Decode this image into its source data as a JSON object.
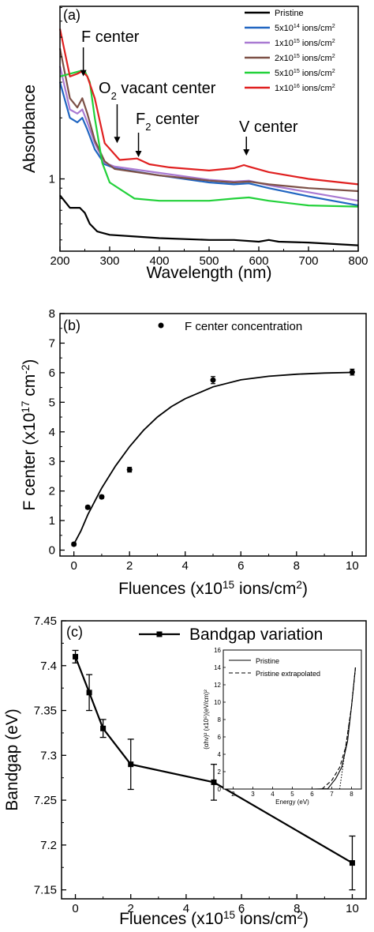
{
  "chart_data": [
    {
      "type": "line",
      "panel_label": "(a)",
      "xlabel": "Wavelength (nm)",
      "ylabel": "Absorbance",
      "xlim": [
        200,
        800
      ],
      "ylog": true,
      "ylim": [
        0.44,
        7.1
      ],
      "xticks": [
        "200",
        "300",
        "400",
        "500",
        "600",
        "700",
        "800"
      ],
      "yticks": [
        {
          "label": "1",
          "value": 1
        }
      ],
      "legend_position": "top-right",
      "annotations": [
        {
          "label": "F center",
          "x": 247,
          "y": 3.15
        },
        {
          "label": "O",
          "sub": "2",
          "label_rest": " vacant center",
          "x": 315,
          "y": 1.5
        },
        {
          "label": "F",
          "sub": "2",
          "label_rest": " center",
          "x": 358,
          "y": 1.28
        },
        {
          "label": "V center",
          "x": 575,
          "y": 1.28
        }
      ],
      "series": [
        {
          "name": "Pristine",
          "sup": "",
          "color": "#000000",
          "x": [
            200,
            220,
            240,
            250,
            260,
            275,
            300,
            350,
            400,
            500,
            550,
            600,
            620,
            640,
            700,
            800
          ],
          "y": [
            0.83,
            0.72,
            0.72,
            0.68,
            0.6,
            0.55,
            0.53,
            0.52,
            0.51,
            0.5,
            0.5,
            0.49,
            0.5,
            0.49,
            0.485,
            0.47
          ]
        },
        {
          "name": "5x10",
          "sup": "14",
          "unit": " ions/cm",
          "unitsup": "2",
          "color": "#2166c1",
          "x": [
            200,
            220,
            235,
            245,
            255,
            270,
            290,
            310,
            400,
            500,
            550,
            580,
            620,
            700,
            800
          ],
          "y": [
            3.0,
            2.0,
            1.9,
            2.0,
            1.75,
            1.4,
            1.18,
            1.13,
            1.04,
            0.96,
            0.94,
            0.95,
            0.9,
            0.82,
            0.74
          ]
        },
        {
          "name": "1x10",
          "sup": "15",
          "unit": " ions/cm",
          "unitsup": "2",
          "color": "#a97ad2",
          "x": [
            200,
            220,
            235,
            245,
            255,
            270,
            290,
            310,
            400,
            500,
            550,
            580,
            620,
            700,
            800
          ],
          "y": [
            3.6,
            2.2,
            2.1,
            2.2,
            1.9,
            1.5,
            1.2,
            1.15,
            1.07,
            0.99,
            0.97,
            0.98,
            0.93,
            0.86,
            0.78
          ]
        },
        {
          "name": "2x10",
          "sup": "15",
          "unit": " ions/cm",
          "unitsup": "2",
          "color": "#7d5147",
          "x": [
            200,
            220,
            235,
            245,
            255,
            270,
            290,
            310,
            400,
            500,
            550,
            580,
            620,
            700,
            800
          ],
          "y": [
            4.4,
            2.5,
            2.25,
            2.5,
            2.1,
            1.55,
            1.22,
            1.12,
            1.04,
            0.98,
            0.96,
            0.97,
            0.94,
            0.9,
            0.87
          ]
        },
        {
          "name": "5x10",
          "sup": "15",
          "unit": " ions/cm",
          "unitsup": "2",
          "color": "#22d13a",
          "x": [
            200,
            220,
            240,
            250,
            260,
            270,
            285,
            300,
            350,
            400,
            500,
            550,
            580,
            620,
            700,
            800
          ],
          "y": [
            3.2,
            3.3,
            3.4,
            3.4,
            3.0,
            2.0,
            1.2,
            0.96,
            0.8,
            0.78,
            0.78,
            0.8,
            0.81,
            0.78,
            0.74,
            0.73
          ]
        },
        {
          "name": "1x10",
          "sup": "16",
          "unit": " ions/cm",
          "unitsup": "2",
          "color": "#e02020",
          "x": [
            200,
            220,
            235,
            245,
            255,
            270,
            290,
            320,
            355,
            380,
            420,
            500,
            550,
            570,
            580,
            620,
            700,
            800
          ],
          "y": [
            5.5,
            3.2,
            3.3,
            3.4,
            3.2,
            2.5,
            1.5,
            1.24,
            1.26,
            1.18,
            1.14,
            1.1,
            1.13,
            1.17,
            1.15,
            1.08,
            1.0,
            0.94
          ]
        }
      ]
    },
    {
      "type": "scatter",
      "panel_label": "(b)",
      "xlabel": "Fluences (x10",
      "xlabel_sup": "15",
      "xlabel_rest": " ions/cm",
      "xlabel_sup2": "2",
      "xlabel_end": ")",
      "ylabel": "F center (x10",
      "ylabel_sup": "17",
      "ylabel_rest": " cm",
      "ylabel_sup2": "-2",
      "ylabel_end": ")",
      "xlim": [
        -0.5,
        10.5
      ],
      "ylim": [
        -0.2,
        8
      ],
      "xticks": [
        0,
        2,
        4,
        6,
        8,
        10
      ],
      "yticks": [
        0,
        1,
        2,
        3,
        4,
        5,
        6,
        7,
        8
      ],
      "legend_position": "top-right",
      "series": [
        {
          "name": "F center concentration",
          "color": "#000000",
          "x": [
            0,
            0.5,
            1,
            2,
            5,
            10
          ],
          "y": [
            0.2,
            1.45,
            1.8,
            2.72,
            5.75,
            6.02
          ],
          "err": [
            0.05,
            0.05,
            0.05,
            0.08,
            0.12,
            0.1
          ]
        }
      ],
      "fit": {
        "color": "#000000",
        "x": [
          0,
          0.25,
          0.5,
          0.75,
          1,
          1.5,
          2,
          2.5,
          3,
          3.5,
          4,
          5,
          6,
          7,
          8,
          9,
          10
        ],
        "y": [
          0.2,
          0.65,
          1.2,
          1.65,
          2.1,
          2.85,
          3.5,
          4.05,
          4.5,
          4.85,
          5.12,
          5.52,
          5.76,
          5.88,
          5.95,
          5.99,
          6.01
        ]
      }
    },
    {
      "type": "line",
      "panel_label": "(c)",
      "xlabel": "Fluences (x10",
      "xlabel_sup": "15",
      "xlabel_rest": " ions/cm",
      "xlabel_sup2": "2",
      "xlabel_end": ")",
      "ylabel": "Bandgap (eV)",
      "xlim": [
        -0.5,
        10.5
      ],
      "ylim": [
        7.14,
        7.45
      ],
      "xticks": [
        0,
        2,
        4,
        6,
        8,
        10
      ],
      "yticks": [
        "7.15",
        "7.2",
        "7.25",
        "7.3",
        "7.35",
        "7.4",
        "7.45"
      ],
      "legend_position": "top-right",
      "series": [
        {
          "name": "Bandgap variation",
          "color": "#000000",
          "x": [
            0,
            0.5,
            1,
            2,
            5,
            10
          ],
          "y": [
            7.41,
            7.37,
            7.33,
            7.29,
            7.27,
            7.18
          ],
          "err": [
            0.007,
            0.02,
            0.01,
            0.028,
            0.02,
            0.03
          ]
        }
      ],
      "inset": {
        "type": "line",
        "xlabel": "Energy (eV)",
        "ylabel": "(αhν)² (x10⁵)(eV/cm)²",
        "xlim": [
          1.5,
          8.5
        ],
        "ylim": [
          0,
          16
        ],
        "xticks": [
          2,
          3,
          4,
          5,
          6,
          7,
          8
        ],
        "yticks": [
          0,
          2,
          4,
          6,
          8,
          10,
          12,
          14,
          16
        ],
        "legend_position": "top-left",
        "series": [
          {
            "name": "Pristine",
            "style": "solid",
            "x": [
              1.5,
              4,
              6,
              6.8,
              7.2,
              7.5,
              7.8,
              8.0,
              8.2
            ],
            "y": [
              0,
              0,
              0,
              0.05,
              1.2,
              2.5,
              5.5,
              9.5,
              14
            ]
          },
          {
            "name": "Pristine extrapolated",
            "style": "dashed",
            "x": [
              6.5,
              7.0,
              7.4,
              7.7,
              8.0,
              8.2
            ],
            "y": [
              0,
              1.0,
              2.5,
              4.8,
              9.5,
              14
            ]
          },
          {
            "name": "",
            "style": "dotted",
            "x": [
              7.4,
              7.7,
              8.0,
              8.2
            ],
            "y": [
              0,
              4.8,
              9.5,
              14
            ]
          }
        ]
      }
    }
  ]
}
